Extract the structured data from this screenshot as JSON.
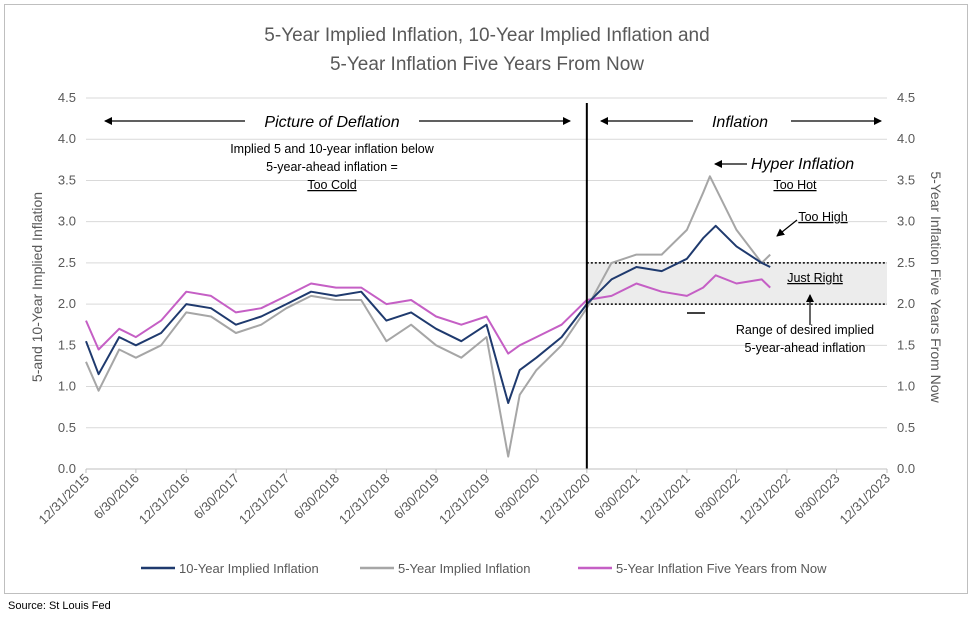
{
  "chart_data": {
    "type": "line",
    "title": [
      "5-Year Implied Inflation, 10-Year Implied Inflation and",
      "5-Year Inflation Five Years From Now"
    ],
    "ylabel_left": "5-and 10-Year Implied Inflation",
    "ylabel_right": "5-Year Inflation Five Years From Now",
    "ylim": [
      0,
      4.5
    ],
    "y_ticks": [
      "0.0",
      "0.5",
      "1.0",
      "1.5",
      "2.0",
      "2.5",
      "3.0",
      "3.5",
      "4.0",
      "4.5"
    ],
    "x_ticks": [
      "12/31/2015",
      "6/30/2016",
      "12/31/2016",
      "6/30/2017",
      "12/31/2017",
      "6/30/2018",
      "12/31/2018",
      "6/30/2019",
      "12/31/2019",
      "6/30/2020",
      "12/31/2020",
      "6/30/2021",
      "12/31/2021",
      "6/30/2022",
      "12/31/2022",
      "6/30/2023",
      "12/31/2023"
    ],
    "grid": "horizontal",
    "legend_position": "bottom",
    "series": [
      {
        "name": "10-Year Implied Inflation",
        "color": "#1f3a6e",
        "x": [
          "2015-12-31",
          "2016-02-15",
          "2016-04-30",
          "2016-06-30",
          "2016-09-30",
          "2016-12-31",
          "2017-03-31",
          "2017-06-30",
          "2017-09-30",
          "2017-12-31",
          "2018-03-31",
          "2018-06-30",
          "2018-09-30",
          "2018-12-31",
          "2019-03-31",
          "2019-06-30",
          "2019-09-30",
          "2019-12-31",
          "2020-03-19",
          "2020-04-30",
          "2020-06-30",
          "2020-09-30",
          "2020-12-31",
          "2021-03-31",
          "2021-06-30",
          "2021-09-30",
          "2021-12-31",
          "2022-02-28",
          "2022-04-15",
          "2022-06-30",
          "2022-09-30",
          "2022-10-31"
        ],
        "values": [
          1.55,
          1.15,
          1.6,
          1.5,
          1.65,
          2.0,
          1.95,
          1.75,
          1.85,
          2.0,
          2.15,
          2.1,
          2.15,
          1.8,
          1.9,
          1.7,
          1.55,
          1.75,
          0.8,
          1.2,
          1.35,
          1.6,
          2.0,
          2.3,
          2.45,
          2.4,
          2.55,
          2.8,
          2.95,
          2.7,
          2.5,
          2.45
        ]
      },
      {
        "name": "5-Year Implied Inflation",
        "color": "#a6a6a6",
        "x": [
          "2015-12-31",
          "2016-02-15",
          "2016-04-30",
          "2016-06-30",
          "2016-09-30",
          "2016-12-31",
          "2017-03-31",
          "2017-06-30",
          "2017-09-30",
          "2017-12-31",
          "2018-03-31",
          "2018-06-30",
          "2018-09-30",
          "2018-12-31",
          "2019-03-31",
          "2019-06-30",
          "2019-09-30",
          "2019-12-31",
          "2020-03-19",
          "2020-04-30",
          "2020-06-30",
          "2020-09-30",
          "2020-12-31",
          "2021-03-31",
          "2021-06-30",
          "2021-09-30",
          "2021-12-31",
          "2022-02-28",
          "2022-03-25",
          "2022-06-30",
          "2022-09-30",
          "2022-10-31"
        ],
        "values": [
          1.3,
          0.95,
          1.45,
          1.35,
          1.5,
          1.9,
          1.85,
          1.65,
          1.75,
          1.95,
          2.1,
          2.05,
          2.05,
          1.55,
          1.75,
          1.5,
          1.35,
          1.6,
          0.15,
          0.9,
          1.2,
          1.5,
          1.95,
          2.5,
          2.6,
          2.6,
          2.9,
          3.35,
          3.55,
          2.9,
          2.5,
          2.6
        ]
      },
      {
        "name": "5-Year Inflation Five Years from Now",
        "color": "#c55fc5",
        "x": [
          "2015-12-31",
          "2016-02-15",
          "2016-04-30",
          "2016-06-30",
          "2016-09-30",
          "2016-12-31",
          "2017-03-31",
          "2017-06-30",
          "2017-09-30",
          "2017-12-31",
          "2018-03-31",
          "2018-06-30",
          "2018-09-30",
          "2018-12-31",
          "2019-03-31",
          "2019-06-30",
          "2019-09-30",
          "2019-12-31",
          "2020-03-19",
          "2020-04-30",
          "2020-06-30",
          "2020-09-30",
          "2020-12-31",
          "2021-03-31",
          "2021-06-30",
          "2021-09-30",
          "2021-12-31",
          "2022-02-28",
          "2022-04-15",
          "2022-06-30",
          "2022-09-30",
          "2022-10-31"
        ],
        "values": [
          1.8,
          1.45,
          1.7,
          1.6,
          1.8,
          2.15,
          2.1,
          1.9,
          1.95,
          2.1,
          2.25,
          2.2,
          2.2,
          2.0,
          2.05,
          1.85,
          1.75,
          1.85,
          1.4,
          1.5,
          1.6,
          1.75,
          2.05,
          2.1,
          2.25,
          2.15,
          2.1,
          2.2,
          2.35,
          2.25,
          2.3,
          2.2
        ]
      }
    ],
    "annotations": {
      "deflation_label": "Picture of Deflation",
      "inflation_label": "Inflation",
      "deflation_note": [
        "Implied 5 and 10-year inflation below",
        "5-year-ahead inflation ="
      ],
      "too_cold": "Too Cold",
      "hyper_inflation": "Hyper Inflation",
      "too_hot": "Too Hot",
      "too_high": "Too High",
      "just_right": "Just Right",
      "range_note": [
        "Range of desired implied",
        "5-year-ahead inflation"
      ],
      "band_range": [
        2.0,
        2.5
      ]
    },
    "source": "Source: St Louis Fed"
  }
}
